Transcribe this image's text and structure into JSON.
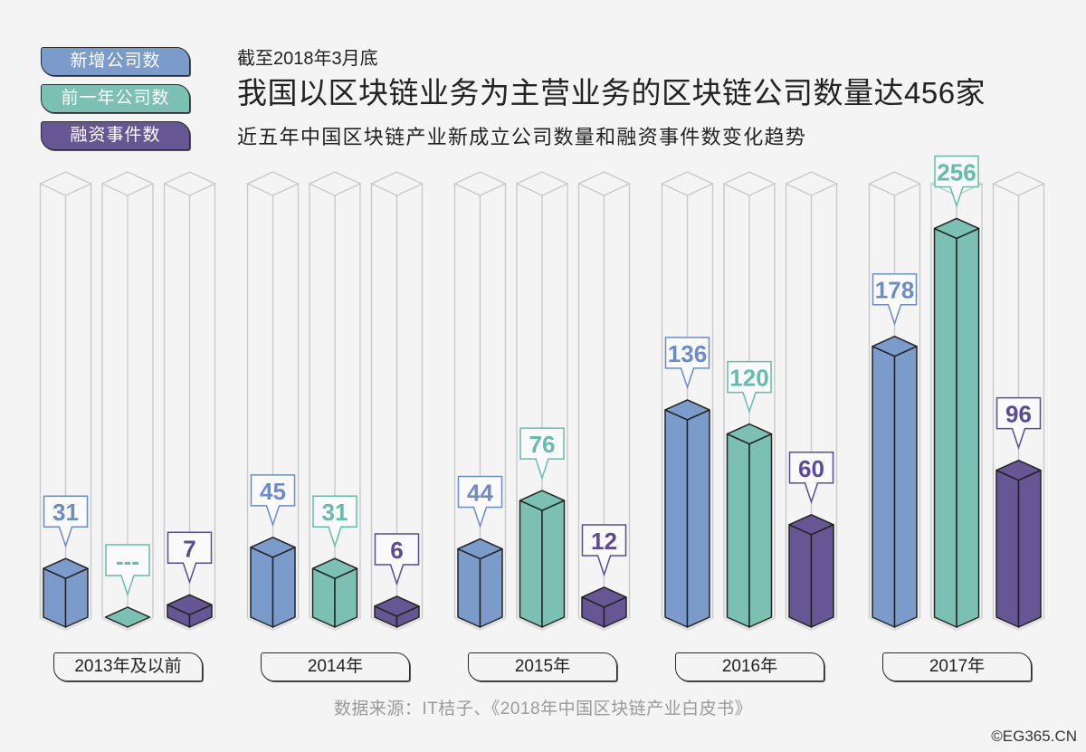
{
  "header": {
    "date_line": "截至2018年3月底",
    "title": "我国以区块链业务为主营业务的区块链公司数量达456家",
    "subtitle": "近五年中国区块链产业新成立公司数量和融资事件数变化趋势"
  },
  "footer": {
    "source": "数据来源：IT桔子、《2018年中国区块链产业白皮书》",
    "copyright": "©EG365.CN"
  },
  "chart_data": {
    "type": "bar",
    "title": "近五年中国区块链产业新成立公司数量和融资事件数变化趋势",
    "xlabel": "",
    "ylabel": "",
    "ylim": [
      0,
      256
    ],
    "grid": false,
    "legend_position": "top-left",
    "categories": [
      "2013年及以前",
      "2014年",
      "2015年",
      "2016年",
      "2017年"
    ],
    "series": [
      {
        "name": "新增公司数",
        "color": "#7b9bcb",
        "label_color": "#6b8cc6",
        "values": [
          31,
          45,
          44,
          136,
          178
        ],
        "labels": [
          "31",
          "45",
          "44",
          "136",
          "178"
        ]
      },
      {
        "name": "前一年公司数",
        "color": "#7bc0b2",
        "label_color": "#66bcab",
        "values": [
          null,
          31,
          76,
          120,
          256
        ],
        "labels": [
          "---",
          "31",
          "76",
          "120",
          "256"
        ]
      },
      {
        "name": "融资事件数",
        "color": "#665694",
        "label_color": "#5a4a97",
        "values": [
          7,
          6,
          12,
          60,
          96
        ],
        "labels": [
          "7",
          "6",
          "12",
          "60",
          "96"
        ]
      }
    ]
  }
}
